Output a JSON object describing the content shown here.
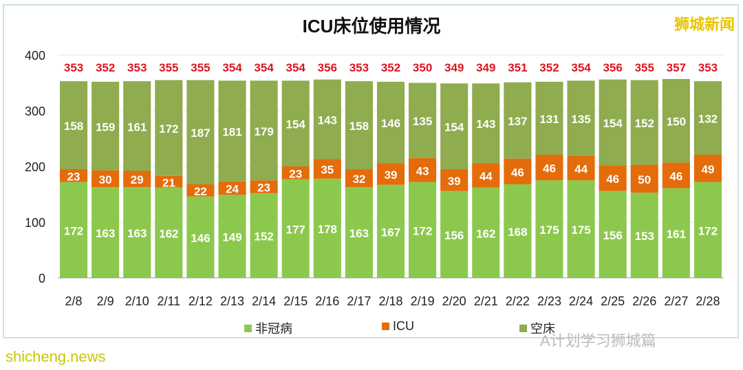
{
  "chart_data": {
    "type": "bar",
    "stacked": true,
    "title": "ICU床位使用情况",
    "categories": [
      "2/8",
      "2/9",
      "2/10",
      "2/11",
      "2/12",
      "2/13",
      "2/14",
      "2/15",
      "2/16",
      "2/17",
      "2/18",
      "2/19",
      "2/20",
      "2/21",
      "2/22",
      "2/23",
      "2/24",
      "2/25",
      "2/26",
      "2/27",
      "2/28"
    ],
    "series": [
      {
        "name": "非冠病",
        "color": "#8dc84e",
        "values": [
          172,
          163,
          163,
          162,
          146,
          149,
          152,
          177,
          178,
          163,
          167,
          172,
          156,
          162,
          168,
          175,
          175,
          156,
          153,
          161,
          172
        ]
      },
      {
        "name": "ICU",
        "color": "#e46c0a",
        "values": [
          23,
          30,
          29,
          21,
          22,
          24,
          23,
          23,
          35,
          32,
          39,
          43,
          39,
          44,
          46,
          46,
          44,
          46,
          50,
          46,
          49
        ]
      },
      {
        "name": "空床",
        "color": "#8fac4e",
        "values": [
          158,
          159,
          161,
          172,
          187,
          181,
          179,
          154,
          143,
          158,
          146,
          135,
          154,
          143,
          137,
          131,
          135,
          154,
          152,
          150,
          132
        ]
      }
    ],
    "totals": [
      353,
      352,
      353,
      355,
      355,
      354,
      354,
      354,
      356,
      353,
      352,
      350,
      349,
      349,
      351,
      352,
      354,
      356,
      355,
      357,
      353
    ],
    "totals_color": "#e0141e",
    "ylim": [
      0,
      400
    ],
    "yticks": [
      0,
      100,
      200,
      300,
      400
    ],
    "legend": "bottom",
    "grid": true
  },
  "watermarks": {
    "brand": "狮城新闻",
    "wechat": "A计划学习狮城篇",
    "site": "shicheng.news"
  }
}
